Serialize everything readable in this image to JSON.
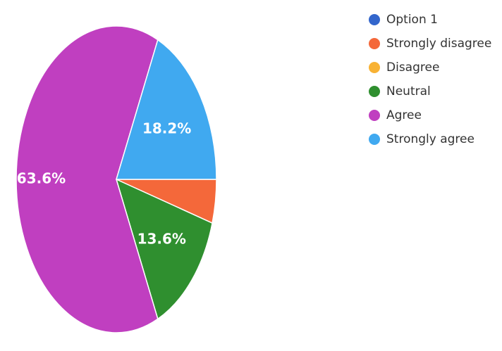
{
  "chart_data": {
    "type": "pie",
    "categories": [
      "Option 1",
      "Strongly disagree",
      "Disagree",
      "Neutral",
      "Agree",
      "Strongly agree"
    ],
    "values": [
      0,
      4.6,
      0,
      13.6,
      63.6,
      18.2
    ],
    "value_labels": [
      null,
      null,
      null,
      "13.6%",
      "63.6%",
      "18.2%"
    ],
    "colors": [
      "#3366cc",
      "#f4683a",
      "#f8b234",
      "#2f8f2f",
      "#c03fc0",
      "#40a9f0"
    ],
    "legend": "right"
  }
}
